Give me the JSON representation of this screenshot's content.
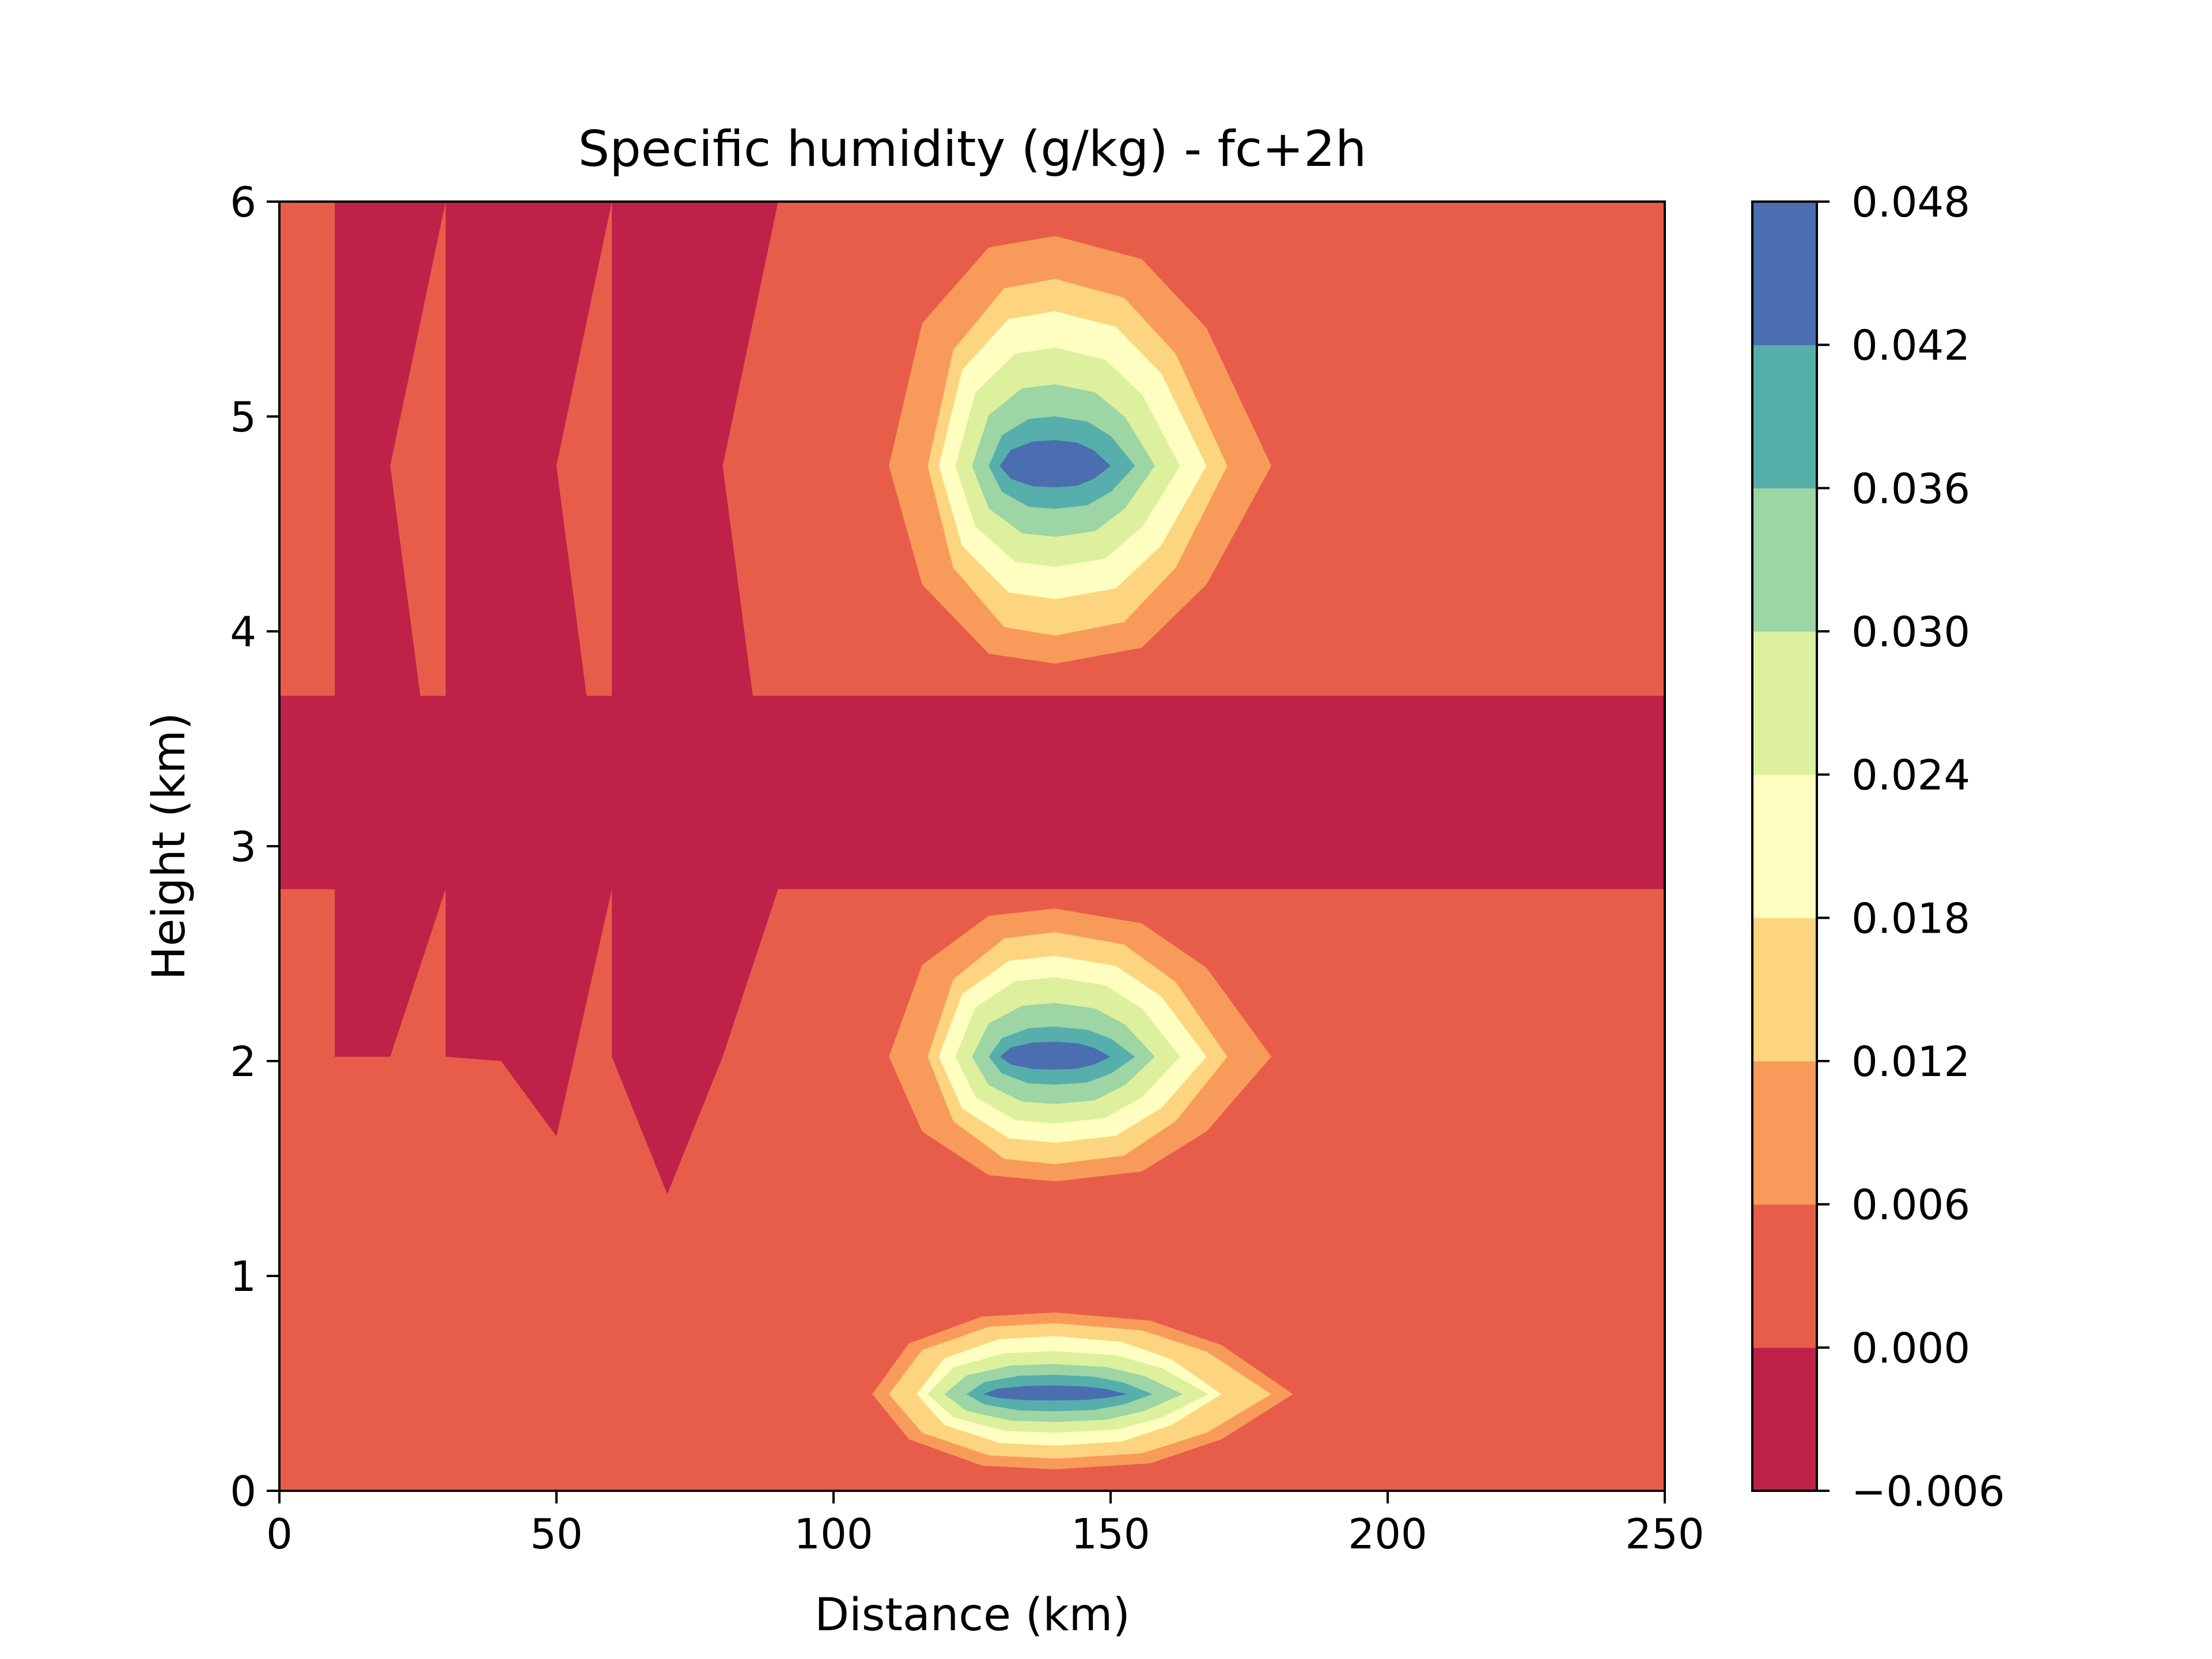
{
  "chart_data": {
    "type": "contourf",
    "title": "Specific humidity (g/kg) - fc+2h",
    "xlabel": "Distance (km)",
    "ylabel": "Height (km)",
    "xlim": [
      0,
      250
    ],
    "ylim": [
      0,
      6
    ],
    "xticks": [
      0,
      50,
      100,
      150,
      200,
      250
    ],
    "xtick_labels": [
      "0",
      "50",
      "100",
      "150",
      "200",
      "250"
    ],
    "yticks": [
      0,
      1,
      2,
      3,
      4,
      5,
      6
    ],
    "ytick_labels": [
      "0",
      "1",
      "2",
      "3",
      "4",
      "5",
      "6"
    ],
    "grid": false,
    "colormap": "Spectral",
    "levels": [
      -0.006,
      0.0,
      0.006,
      0.012,
      0.018,
      0.024,
      0.03,
      0.036,
      0.042,
      0.048
    ],
    "colorbar": {
      "orientation": "vertical",
      "tick_labels": [
        "−0.006",
        "0.000",
        "0.006",
        "0.012",
        "0.018",
        "0.024",
        "0.030",
        "0.036",
        "0.042",
        "0.048"
      ],
      "band_colors": [
        "#be2248",
        "#e85d4a",
        "#f89b5a",
        "#fdd47f",
        "#fdfec0",
        "#dcf09d",
        "#9dd5a4",
        "#56afaa",
        "#4a6eb0"
      ]
    },
    "background_band": {
      "level_index": 1,
      "range": [
        0.0,
        0.006
      ]
    },
    "negative_band": {
      "level_index": 0,
      "range": [
        -0.006,
        0.0
      ],
      "y_range": [
        2.8,
        3.7
      ]
    },
    "negative_regions": [
      {
        "x": [
          10,
          30,
          20,
          30,
          20,
          10
        ],
        "y": [
          6,
          6,
          4.77,
          2.8,
          2.02,
          2.02
        ]
      },
      {
        "x": [
          30,
          60,
          50,
          60,
          50,
          40,
          30
        ],
        "y": [
          6,
          6,
          4.77,
          2.8,
          1.65,
          2.0,
          2.02
        ]
      },
      {
        "x": [
          60,
          90,
          80,
          90,
          80,
          70,
          60
        ],
        "y": [
          6,
          6,
          4.77,
          2.8,
          2.02,
          1.38,
          2.02
        ]
      }
    ],
    "moist_blobs": [
      {
        "center_x": 140,
        "center_y": 4.77,
        "peak": 0.048,
        "x_radii": [
          30,
          23,
          21,
          18,
          15,
          12,
          10,
          5
        ],
        "y_radius_up": [
          1.07,
          0.87,
          0.72,
          0.55,
          0.38,
          0.23,
          0.12
        ],
        "y_radius_down": [
          0.92,
          0.79,
          0.62,
          0.47,
          0.33,
          0.2,
          0.1
        ],
        "skew_right": [
          1.3,
          1.35,
          1.3,
          1.25,
          1.2,
          1.2,
          1.0
        ]
      },
      {
        "center_x": 140,
        "center_y": 2.02,
        "peak": 0.048,
        "x_radii": [
          30,
          23,
          21,
          18,
          15,
          12,
          10,
          5
        ],
        "y_radius_up": [
          0.69,
          0.58,
          0.47,
          0.37,
          0.25,
          0.14,
          0.07
        ],
        "y_radius_down": [
          0.58,
          0.5,
          0.4,
          0.31,
          0.22,
          0.13,
          0.06
        ],
        "skew_right": [
          1.3,
          1.35,
          1.3,
          1.25,
          1.2,
          1.2,
          1.0
        ]
      },
      {
        "center_x": 140,
        "center_y": 0.45,
        "peak": 0.048,
        "x_radii": [
          33,
          30,
          25,
          23,
          20,
          16,
          13,
          5
        ],
        "y_radius_up": [
          0.38,
          0.33,
          0.27,
          0.2,
          0.14,
          0.09,
          0.04
        ],
        "y_radius_down": [
          0.35,
          0.3,
          0.24,
          0.18,
          0.13,
          0.08,
          0.03
        ],
        "skew_right": [
          1.3,
          1.3,
          1.2,
          1.2,
          1.15,
          1.1,
          1.0
        ]
      }
    ]
  }
}
